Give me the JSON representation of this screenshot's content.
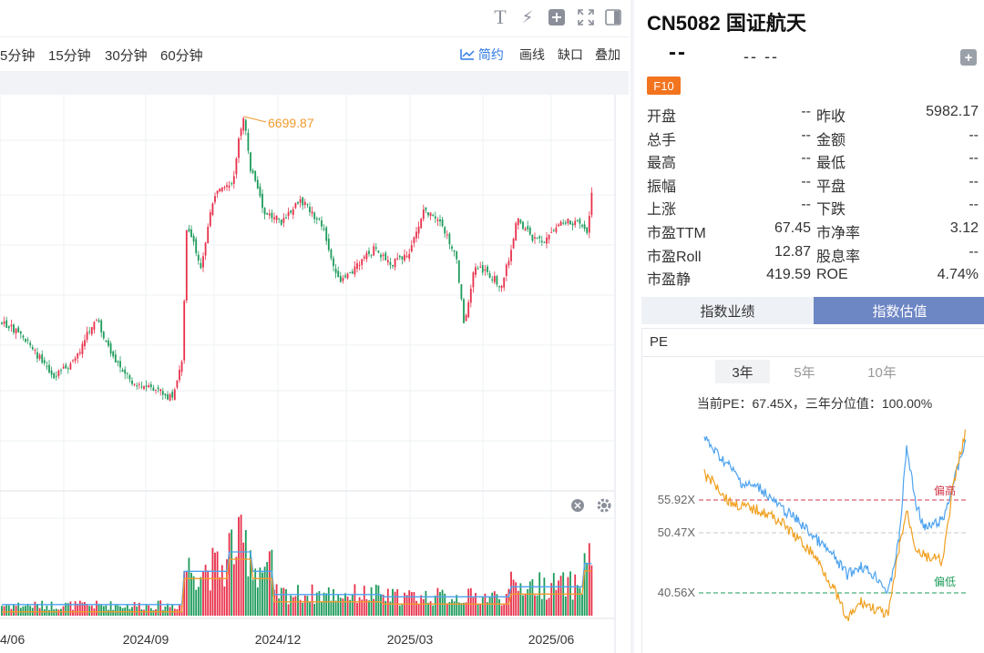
{
  "toolbar": {
    "icons": [
      "text-icon",
      "lightning-icon",
      "plus-square-icon",
      "fullscreen-icon",
      "panel-icon"
    ],
    "periods": [
      "5分钟",
      "15分钟",
      "30分钟",
      "60分钟"
    ],
    "tools": [
      "简约",
      "画线",
      "缺口",
      "叠加"
    ]
  },
  "chart": {
    "max_label": "6699.87",
    "x_ticks": [
      "4/06",
      "2024/09",
      "2024/12",
      "2025/03",
      "2025/06"
    ],
    "colors": {
      "up": "#e8304a",
      "down": "#1d9b5a",
      "accent": "#f29a2e",
      "blue": "#4ea3f0"
    }
  },
  "quote": {
    "title": "CN5082 国证航天",
    "price": "--",
    "change": "--  --",
    "f10": "F10",
    "rows": [
      {
        "l_label": "开盘",
        "l_value": "--",
        "r_label": "昨收",
        "r_value": "5982.17"
      },
      {
        "l_label": "总手",
        "l_value": "--",
        "r_label": "金额",
        "r_value": "--"
      },
      {
        "l_label": "最高",
        "l_value": "--",
        "r_label": "最低",
        "r_value": "--"
      },
      {
        "l_label": "振幅",
        "l_value": "--",
        "r_label": "平盘",
        "r_value": "--"
      },
      {
        "l_label": "上涨",
        "l_value": "--",
        "r_label": "下跌",
        "r_value": "--"
      },
      {
        "l_label": "市盈TTM",
        "l_value": "67.45",
        "r_label": "市净率",
        "r_value": "3.12"
      },
      {
        "l_label": "市盈Roll",
        "l_value": "12.87",
        "r_label": "股息率",
        "r_value": "--"
      },
      {
        "l_label": "市盈静",
        "l_value": "419.59",
        "r_label": "ROE",
        "r_value": "4.74%"
      }
    ]
  },
  "tabs": [
    "指数业绩",
    "指数估值"
  ],
  "pe": {
    "label": "PE",
    "years": [
      "3年",
      "5年",
      "10年"
    ],
    "info": "当前PE：67.45X，三年分位值：100.00%",
    "levels": [
      "55.92X",
      "50.47X",
      "40.56X"
    ],
    "high_label": "偏高",
    "low_label": "偏低"
  }
}
